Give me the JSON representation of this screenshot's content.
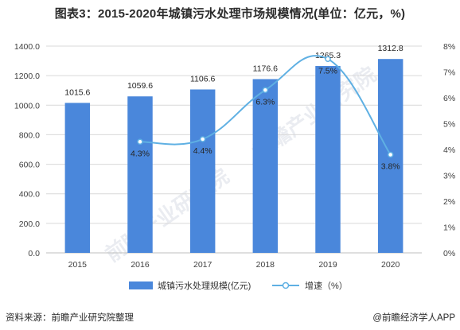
{
  "title": "图表3：2015-2020年城镇污水处理市场规模情况(单位：亿元，%)",
  "source": "资料来源：前瞻产业研究院整理",
  "credit": "@前瞻经济学人APP",
  "watermark": "前瞻产业研究院",
  "colors": {
    "bar": "#4a87db",
    "line": "#5fb0e3",
    "grid": "#d9d9d9"
  },
  "chart_data": {
    "type": "bar",
    "categories": [
      "2015",
      "2016",
      "2017",
      "2018",
      "2019",
      "2020"
    ],
    "series": [
      {
        "name": "城镇污水处理规模(亿元)",
        "type": "bar",
        "axis": "left",
        "values": [
          1015.6,
          1059.6,
          1106.6,
          1176.6,
          1265.3,
          1312.8
        ],
        "labels": [
          "1015.6",
          "1059.6",
          "1106.6",
          "1176.6",
          "1265.3",
          "1312.8"
        ]
      },
      {
        "name": "增速（%）",
        "type": "line",
        "axis": "right",
        "values": [
          null,
          4.3,
          4.4,
          6.3,
          7.5,
          3.8
        ],
        "labels": [
          "",
          "4.3%",
          "4.4%",
          "6.3%",
          "7.5%",
          "3.8%"
        ]
      }
    ],
    "y_left": {
      "min": 0,
      "max": 1400,
      "step": 200,
      "ticks": [
        "0.0",
        "200.0",
        "400.0",
        "600.0",
        "800.0",
        "1000.0",
        "1200.0",
        "1400.0"
      ]
    },
    "y_right": {
      "min": 0,
      "max": 8,
      "step": 1,
      "ticks": [
        "0%",
        "1%",
        "2%",
        "3%",
        "4%",
        "5%",
        "6%",
        "7%",
        "8%"
      ]
    },
    "grid": true,
    "legend_position": "bottom"
  }
}
